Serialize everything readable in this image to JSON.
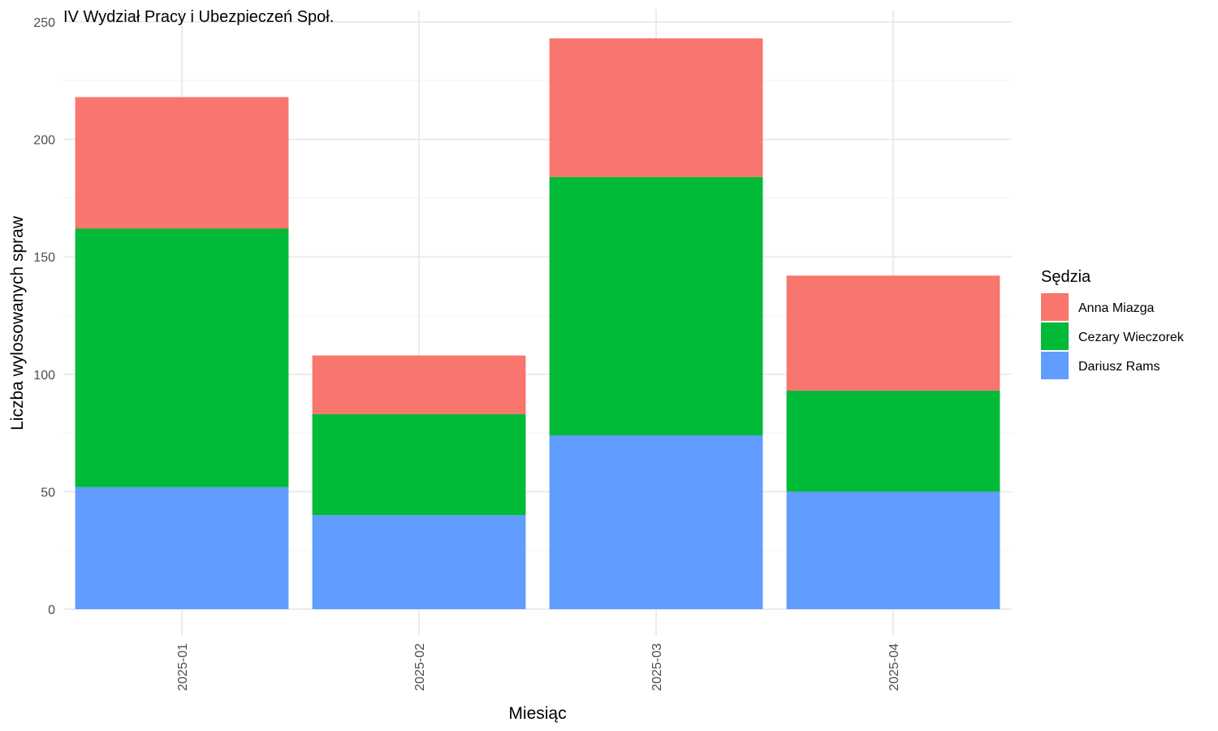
{
  "chart_data": {
    "type": "bar",
    "stacked": true,
    "title": "IV Wydział Pracy i Ubezpieczeń Społ.",
    "xlabel": "Miesiąc",
    "ylabel": "Liczba wylosowanych spraw",
    "categories": [
      "2025-01",
      "2025-02",
      "2025-03",
      "2025-04"
    ],
    "ylim": [
      0,
      250
    ],
    "yticks": [
      0,
      50,
      100,
      150,
      200,
      250
    ],
    "grid": true,
    "legend": {
      "title": "Sędzia",
      "position": "right"
    },
    "series": [
      {
        "name": "Dariusz Rams",
        "color": "#619CFF",
        "values": [
          52,
          40,
          74,
          50
        ]
      },
      {
        "name": "Cezary Wieczorek",
        "color": "#00BA38",
        "values": [
          110,
          43,
          110,
          43
        ]
      },
      {
        "name": "Anna Miazga",
        "color": "#F8766D",
        "values": [
          56,
          25,
          59,
          49
        ]
      }
    ],
    "legend_order": [
      "Anna Miazga",
      "Cezary Wieczorek",
      "Dariusz Rams"
    ]
  }
}
